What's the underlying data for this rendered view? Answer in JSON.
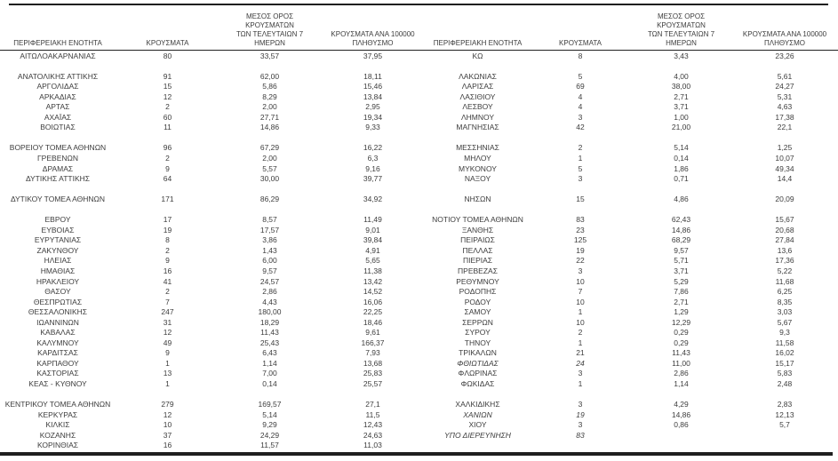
{
  "table": {
    "headers": {
      "region": "ΠΕΡΙΦΕΡΕΙΑΚΗ ΕΝΟΤΗΤΑ",
      "cases": "ΚΡΟΥΣΜΑΤΑ",
      "avg7": "ΜΕΣΟΣ ΟΡΟΣ ΚΡΟΥΣΜΑΤΩΝ\nΤΩΝ ΤΕΛΕΥΤΑΙΩΝ 7 ΗΜΕΡΩΝ",
      "per100k": "ΚΡΟΥΣΜΑΤΑ ΑΝΑ 100000\nΠΛΗΘΥΣΜΟ"
    },
    "colors": {
      "text": "#3d3d3d",
      "rule": "#1f1f1f",
      "background": "#ffffff"
    },
    "left_rows": [
      {
        "name": "ΑΙΤΩΛΟΑΚΑΡΝΑΝΙΑΣ",
        "cases": "80",
        "avg7": "33,57",
        "per100k": "37,95"
      },
      null,
      {
        "name": "ΑΝΑΤΟΛΙΚΗΣ ΑΤΤΙΚΗΣ",
        "cases": "91",
        "avg7": "62,00",
        "per100k": "18,11"
      },
      {
        "name": "ΑΡΓΟΛΙΔΑΣ",
        "cases": "15",
        "avg7": "5,86",
        "per100k": "15,46"
      },
      {
        "name": "ΑΡΚΑΔΙΑΣ",
        "cases": "12",
        "avg7": "8,29",
        "per100k": "13,84"
      },
      {
        "name": "ΑΡΤΑΣ",
        "cases": "2",
        "avg7": "2,00",
        "per100k": "2,95"
      },
      {
        "name": "ΑΧΑΪΑΣ",
        "cases": "60",
        "avg7": "27,71",
        "per100k": "19,34"
      },
      {
        "name": "ΒΟΙΩΤΙΑΣ",
        "cases": "11",
        "avg7": "14,86",
        "per100k": "9,33"
      },
      null,
      {
        "name": "ΒΟΡΕΙΟΥ ΤΟΜΕΑ ΑΘΗΝΩΝ",
        "cases": "96",
        "avg7": "67,29",
        "per100k": "16,22"
      },
      {
        "name": "ΓΡΕΒΕΝΩΝ",
        "cases": "2",
        "avg7": "2,00",
        "per100k": "6,3"
      },
      {
        "name": "ΔΡΑΜΑΣ",
        "cases": "9",
        "avg7": "5,57",
        "per100k": "9,16"
      },
      {
        "name": "ΔΥΤΙΚΗΣ ΑΤΤΙΚΗΣ",
        "cases": "64",
        "avg7": "30,00",
        "per100k": "39,77"
      },
      null,
      {
        "name": "ΔΥΤΙΚΟΥ ΤΟΜΕΑ ΑΘΗΝΩΝ",
        "cases": "171",
        "avg7": "86,29",
        "per100k": "34,92"
      },
      null,
      {
        "name": "ΕΒΡΟΥ",
        "cases": "17",
        "avg7": "8,57",
        "per100k": "11,49"
      },
      {
        "name": "ΕΥΒΟΙΑΣ",
        "cases": "19",
        "avg7": "17,57",
        "per100k": "9,01"
      },
      {
        "name": "ΕΥΡΥΤΑΝΙΑΣ",
        "cases": "8",
        "avg7": "3,86",
        "per100k": "39,84"
      },
      {
        "name": "ΖΑΚΥΝΘΟΥ",
        "cases": "2",
        "avg7": "1,43",
        "per100k": "4,91"
      },
      {
        "name": "ΗΛΕΙΑΣ",
        "cases": "9",
        "avg7": "6,00",
        "per100k": "5,65"
      },
      {
        "name": "ΗΜΑΘΙΑΣ",
        "cases": "16",
        "avg7": "9,57",
        "per100k": "11,38"
      },
      {
        "name": "ΗΡΑΚΛΕΙΟΥ",
        "cases": "41",
        "avg7": "24,57",
        "per100k": "13,42"
      },
      {
        "name": "ΘΑΣΟΥ",
        "cases": "2",
        "avg7": "2,86",
        "per100k": "14,52"
      },
      {
        "name": "ΘΕΣΠΡΩΤΙΑΣ",
        "cases": "7",
        "avg7": "4,43",
        "per100k": "16,06"
      },
      {
        "name": "ΘΕΣΣΑΛΟΝΙΚΗΣ",
        "cases": "247",
        "avg7": "180,00",
        "per100k": "22,25"
      },
      {
        "name": "ΙΩΑΝΝΙΝΩΝ",
        "cases": "31",
        "avg7": "18,29",
        "per100k": "18,46"
      },
      {
        "name": "ΚΑΒΑΛΑΣ",
        "cases": "12",
        "avg7": "11,43",
        "per100k": "9,61"
      },
      {
        "name": "ΚΑΛΥΜΝΟΥ",
        "cases": "49",
        "avg7": "25,43",
        "per100k": "166,37"
      },
      {
        "name": "ΚΑΡΔΙΤΣΑΣ",
        "cases": "9",
        "avg7": "6,43",
        "per100k": "7,93"
      },
      {
        "name": "ΚΑΡΠΑΘΟΥ",
        "cases": "1",
        "avg7": "1,14",
        "per100k": "13,68"
      },
      {
        "name": "ΚΑΣΤΟΡΙΑΣ",
        "cases": "13",
        "avg7": "7,00",
        "per100k": "25,83"
      },
      {
        "name": "ΚΕΑΣ - ΚΥΘΝΟΥ",
        "cases": "1",
        "avg7": "0,14",
        "per100k": "25,57"
      },
      null,
      {
        "name": "ΚΕΝΤΡΙΚΟΥ ΤΟΜΕΑ ΑΘΗΝΩΝ",
        "cases": "279",
        "avg7": "169,57",
        "per100k": "27,1"
      },
      {
        "name": "ΚΕΡΚΥΡΑΣ",
        "cases": "12",
        "avg7": "5,14",
        "per100k": "11,5"
      },
      {
        "name": "ΚΙΛΚΙΣ",
        "cases": "10",
        "avg7": "9,29",
        "per100k": "12,43"
      },
      {
        "name": "ΚΟΖΑΝΗΣ",
        "cases": "37",
        "avg7": "24,29",
        "per100k": "24,63"
      },
      {
        "name": "ΚΟΡΙΝΘΙΑΣ",
        "cases": "16",
        "avg7": "11,57",
        "per100k": "11,03"
      }
    ],
    "right_rows": [
      {
        "name": "ΚΩ",
        "cases": "8",
        "avg7": "3,43",
        "per100k": "23,26"
      },
      null,
      {
        "name": "ΛΑΚΩΝΙΑΣ",
        "cases": "5",
        "avg7": "4,00",
        "per100k": "5,61"
      },
      {
        "name": "ΛΑΡΙΣΑΣ",
        "cases": "69",
        "avg7": "38,00",
        "per100k": "24,27"
      },
      {
        "name": "ΛΑΣΙΘΙΟΥ",
        "cases": "4",
        "avg7": "2,71",
        "per100k": "5,31"
      },
      {
        "name": "ΛΕΣΒΟΥ",
        "cases": "4",
        "avg7": "3,71",
        "per100k": "4,63"
      },
      {
        "name": "ΛΗΜΝΟΥ",
        "cases": "3",
        "avg7": "1,00",
        "per100k": "17,38"
      },
      {
        "name": "ΜΑΓΝΗΣΙΑΣ",
        "cases": "42",
        "avg7": "21,00",
        "per100k": "22,1"
      },
      null,
      {
        "name": "ΜΕΣΣΗΝΙΑΣ",
        "cases": "2",
        "avg7": "5,14",
        "per100k": "1,25"
      },
      {
        "name": "ΜΗΛΟΥ",
        "cases": "1",
        "avg7": "0,14",
        "per100k": "10,07"
      },
      {
        "name": "ΜΥΚΟΝΟΥ",
        "cases": "5",
        "avg7": "1,86",
        "per100k": "49,34"
      },
      {
        "name": "ΝΑΞΟΥ",
        "cases": "3",
        "avg7": "0,71",
        "per100k": "14,4"
      },
      null,
      {
        "name": "ΝΗΣΩΝ",
        "cases": "15",
        "avg7": "4,86",
        "per100k": "20,09"
      },
      null,
      {
        "name": "ΝΟΤΙΟΥ ΤΟΜΕΑ ΑΘΗΝΩΝ",
        "cases": "83",
        "avg7": "62,43",
        "per100k": "15,67"
      },
      {
        "name": "ΞΑΝΘΗΣ",
        "cases": "23",
        "avg7": "14,86",
        "per100k": "20,68"
      },
      {
        "name": "ΠΕΙΡΑΙΩΣ",
        "cases": "125",
        "avg7": "68,29",
        "per100k": "27,84"
      },
      {
        "name": "ΠΕΛΛΑΣ",
        "cases": "19",
        "avg7": "9,57",
        "per100k": "13,6"
      },
      {
        "name": "ΠΙΕΡΙΑΣ",
        "cases": "22",
        "avg7": "5,71",
        "per100k": "17,36"
      },
      {
        "name": "ΠΡΕΒΕΖΑΣ",
        "cases": "3",
        "avg7": "3,71",
        "per100k": "5,22"
      },
      {
        "name": "ΡΕΘΥΜΝΟΥ",
        "cases": "10",
        "avg7": "5,29",
        "per100k": "11,68"
      },
      {
        "name": "ΡΟΔΟΠΗΣ",
        "cases": "7",
        "avg7": "7,86",
        "per100k": "6,25"
      },
      {
        "name": "ΡΟΔΟΥ",
        "cases": "10",
        "avg7": "2,71",
        "per100k": "8,35"
      },
      {
        "name": "ΣΑΜΟΥ",
        "cases": "1",
        "avg7": "1,29",
        "per100k": "3,03"
      },
      {
        "name": "ΣΕΡΡΩΝ",
        "cases": "10",
        "avg7": "12,29",
        "per100k": "5,67"
      },
      {
        "name": "ΣΥΡΟΥ",
        "cases": "2",
        "avg7": "0,29",
        "per100k": "9,3"
      },
      {
        "name": "ΤΗΝΟΥ",
        "cases": "1",
        "avg7": "0,29",
        "per100k": "11,58"
      },
      {
        "name": "ΤΡΙΚΑΛΩΝ",
        "cases": "21",
        "avg7": "11,43",
        "per100k": "16,02"
      },
      {
        "name": "ΦΘΙΩΤΙΔΑΣ",
        "cases": "24",
        "avg7": "11,00",
        "per100k": "15,17",
        "italic": true
      },
      {
        "name": "ΦΛΩΡΙΝΑΣ",
        "cases": "3",
        "avg7": "2,86",
        "per100k": "5,83"
      },
      {
        "name": "ΦΩΚΙΔΑΣ",
        "cases": "1",
        "avg7": "1,14",
        "per100k": "2,48"
      },
      null,
      {
        "name": "ΧΑΛΚΙΔΙΚΗΣ",
        "cases": "3",
        "avg7": "4,29",
        "per100k": "2,83"
      },
      {
        "name": "ΧΑΝΙΩΝ",
        "cases": "19",
        "avg7": "14,86",
        "per100k": "12,13",
        "italic": true
      },
      {
        "name": "ΧΙΟΥ",
        "cases": "3",
        "avg7": "0,86",
        "per100k": "5,7"
      },
      {
        "name": "ΥΠΟ ΔΙΕΡΕΥΝΗΣΗ",
        "cases": "83",
        "avg7": "",
        "per100k": "",
        "italic": true
      },
      null
    ]
  }
}
